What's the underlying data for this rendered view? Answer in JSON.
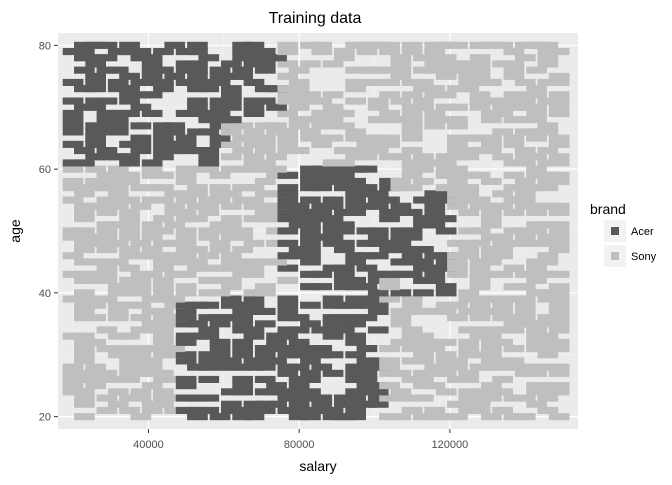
{
  "chart_data": {
    "type": "scatter",
    "title": "Training data",
    "xlabel": "salary",
    "ylabel": "age",
    "xlim": [
      16000,
      154000
    ],
    "ylim": [
      18,
      82
    ],
    "x_ticks": [
      40000,
      80000,
      120000
    ],
    "x_tick_labels": [
      "40000",
      "80000",
      "120000"
    ],
    "y_ticks": [
      20,
      40,
      60,
      80
    ],
    "y_tick_labels": [
      "20",
      "40",
      "60",
      "80"
    ],
    "grid": true,
    "legend": {
      "title": "brand",
      "position": "right",
      "entries": [
        {
          "label": "Acer",
          "color": "#595959"
        },
        {
          "label": "Sony",
          "color": "#bfbfbf"
        }
      ]
    },
    "series": [
      {
        "name": "Acer",
        "color": "#595959"
      },
      {
        "name": "Sony",
        "color": "#bfbfbf"
      }
    ],
    "point_grid": {
      "salary_range": [
        20000,
        150000
      ],
      "salary_step": 1000,
      "age_range": [
        20,
        80
      ],
      "age_step": 1,
      "fill_fraction": 0.5
    },
    "regions": [
      {
        "brand": "Acer",
        "salary_range": [
          20000,
          60000
        ],
        "age_range": [
          61,
          80
        ]
      },
      {
        "brand": "Acer",
        "salary_range": [
          60000,
          76000
        ],
        "age_range": [
          68,
          80
        ]
      },
      {
        "brand": "Acer",
        "salary_range": [
          76000,
          106000
        ],
        "age_range": [
          43,
          60
        ]
      },
      {
        "brand": "Acer",
        "salary_range": [
          106000,
          120000
        ],
        "age_range": [
          40,
          56
        ]
      },
      {
        "brand": "Acer",
        "salary_range": [
          48000,
          82000
        ],
        "age_range": [
          20,
          39
        ]
      },
      {
        "brand": "Acer",
        "salary_range": [
          82000,
          104000
        ],
        "age_range": [
          20,
          42
        ]
      }
    ],
    "default_brand": "Sony"
  }
}
